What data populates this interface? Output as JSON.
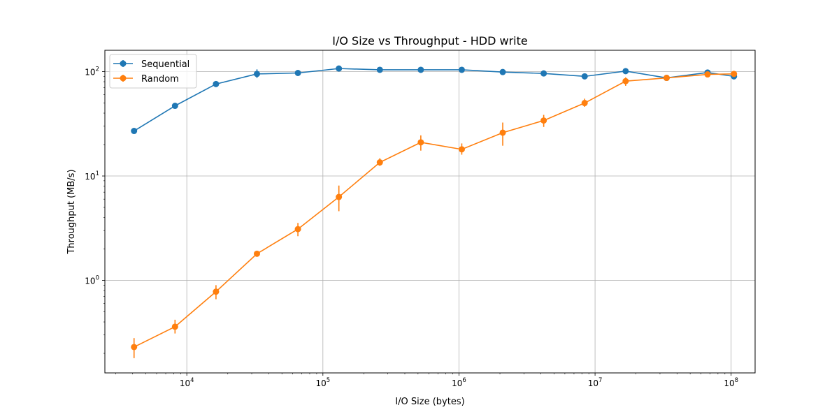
{
  "chart_data": {
    "type": "line",
    "title": "I/O Size vs Throughput - HDD write",
    "xlabel": "I/O Size (bytes)",
    "ylabel": "Throughput (MB/s)",
    "xscale": "log",
    "yscale": "log",
    "xlim": [
      2500,
      150000000
    ],
    "ylim": [
      0.13,
      160
    ],
    "grid": true,
    "legend_position": "top-left",
    "x_ticks": [
      {
        "value": 10000,
        "base": "10",
        "exp": "4"
      },
      {
        "value": 100000,
        "base": "10",
        "exp": "5"
      },
      {
        "value": 1000000,
        "base": "10",
        "exp": "6"
      },
      {
        "value": 10000000,
        "base": "10",
        "exp": "7"
      },
      {
        "value": 100000000,
        "base": "10",
        "exp": "8"
      }
    ],
    "y_ticks": [
      {
        "value": 1,
        "base": "10",
        "exp": "0"
      },
      {
        "value": 10,
        "base": "10",
        "exp": "1"
      },
      {
        "value": 100,
        "base": "10",
        "exp": "2"
      }
    ],
    "x": [
      4096,
      8192,
      16384,
      32768,
      65536,
      131072,
      262144,
      524288,
      1048576,
      2097152,
      4194304,
      8388608,
      16777216,
      33554432,
      67108864,
      104857600
    ],
    "series": [
      {
        "name": "Sequential",
        "color": "#1f77b4",
        "values": [
          27,
          47,
          76,
          95,
          97,
          107,
          104,
          104,
          104,
          99,
          96,
          90,
          101,
          87,
          98,
          90
        ],
        "err_low": [
          0,
          0,
          0,
          87,
          95,
          105,
          102,
          102,
          102,
          97,
          93,
          88,
          99,
          83,
          96,
          88
        ],
        "err_high": [
          0,
          0,
          0,
          105,
          100,
          110,
          106,
          106,
          106,
          101,
          99,
          92,
          103,
          91,
          100,
          92
        ]
      },
      {
        "name": "Random",
        "color": "#ff7f0e",
        "values": [
          0.23,
          0.36,
          0.78,
          1.8,
          3.1,
          6.3,
          13.5,
          21,
          18,
          26,
          34,
          50,
          81,
          87,
          94,
          95
        ],
        "err_low": [
          0.18,
          0.31,
          0.66,
          1.7,
          2.65,
          4.6,
          12.5,
          17.5,
          16,
          19.5,
          29.5,
          46,
          73,
          83,
          90,
          93
        ],
        "err_high": [
          0.28,
          0.42,
          0.9,
          1.9,
          3.55,
          8.1,
          14.8,
          24.5,
          20.5,
          32.5,
          38.5,
          55,
          88,
          91,
          98,
          97
        ]
      }
    ]
  }
}
